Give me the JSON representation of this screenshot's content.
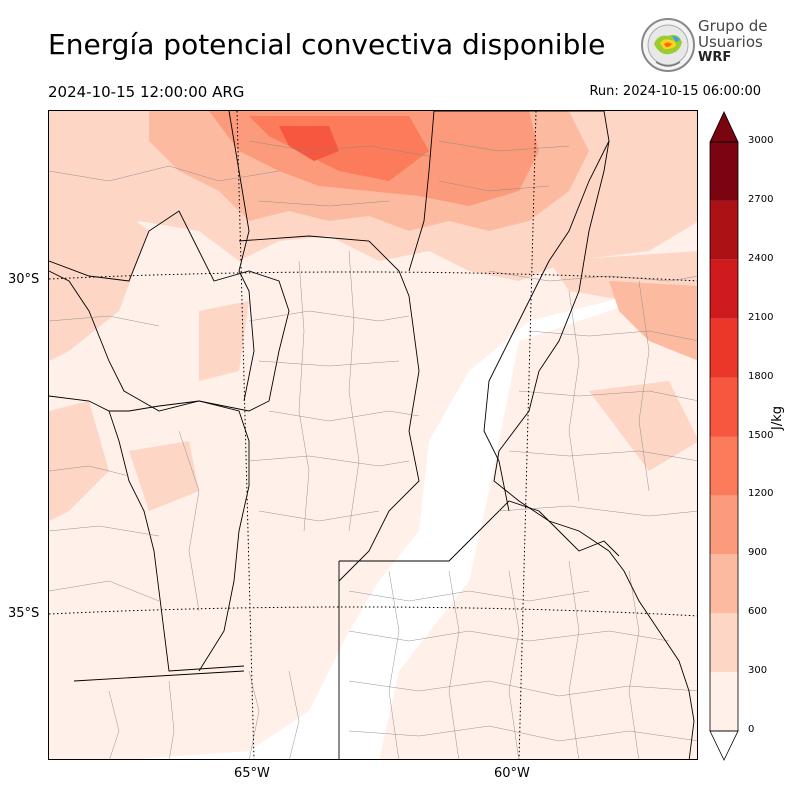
{
  "header": {
    "title": "Energía potencial convectiva disponible",
    "valid_time": "2024-10-15 12:00:00 ARG",
    "run_time": "Run: 2024-10-15 06:00:00"
  },
  "logo": {
    "line1": "Grupo de",
    "line2": "Usuarios",
    "line3": "WRF"
  },
  "map": {
    "lat_labels": [
      "30°S",
      "35°S"
    ],
    "lon_labels": [
      "65°W",
      "60°W"
    ]
  },
  "colorbar": {
    "unit": "J/kg",
    "ticks": [
      "0",
      "300",
      "600",
      "900",
      "1200",
      "1500",
      "1800",
      "2100",
      "2400",
      "2700",
      "3000"
    ],
    "colors": [
      "#fff0ea",
      "#fdd6c5",
      "#fcbba1",
      "#fc9a7c",
      "#fb7b5b",
      "#f6573e",
      "#ea372a",
      "#cf1b1d",
      "#ac1116",
      "#7a0510"
    ],
    "extend": "both"
  }
}
